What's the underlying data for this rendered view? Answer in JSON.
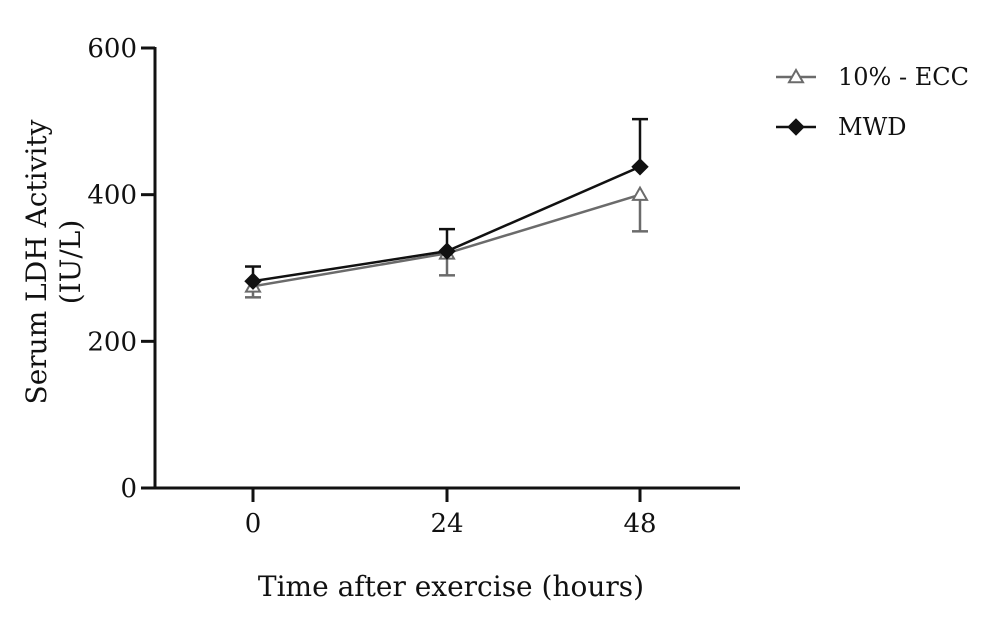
{
  "chart_data": {
    "type": "line",
    "xlabel": "Time after exercise (hours)",
    "ylabel_lines": [
      "Serum LDH Activity",
      "(IU/L)"
    ],
    "x": [
      0,
      24,
      48
    ],
    "x_ticks": [
      "0",
      "24",
      "48"
    ],
    "ylim": [
      0,
      600
    ],
    "y_ticks": [
      "0",
      "200",
      "400",
      "600"
    ],
    "legend_position": "top-right",
    "grid": false,
    "series": [
      {
        "name": "10% - ECC",
        "marker": "open-triangle",
        "color": "#6b6b6b",
        "values": [
          275,
          320,
          400
        ],
        "error": [
          15,
          30,
          50
        ],
        "error_direction": "down"
      },
      {
        "name": "MWD",
        "marker": "filled-diamond",
        "color": "#111111",
        "values": [
          282,
          323,
          438
        ],
        "error": [
          20,
          30,
          65
        ],
        "error_direction": "up"
      }
    ]
  }
}
